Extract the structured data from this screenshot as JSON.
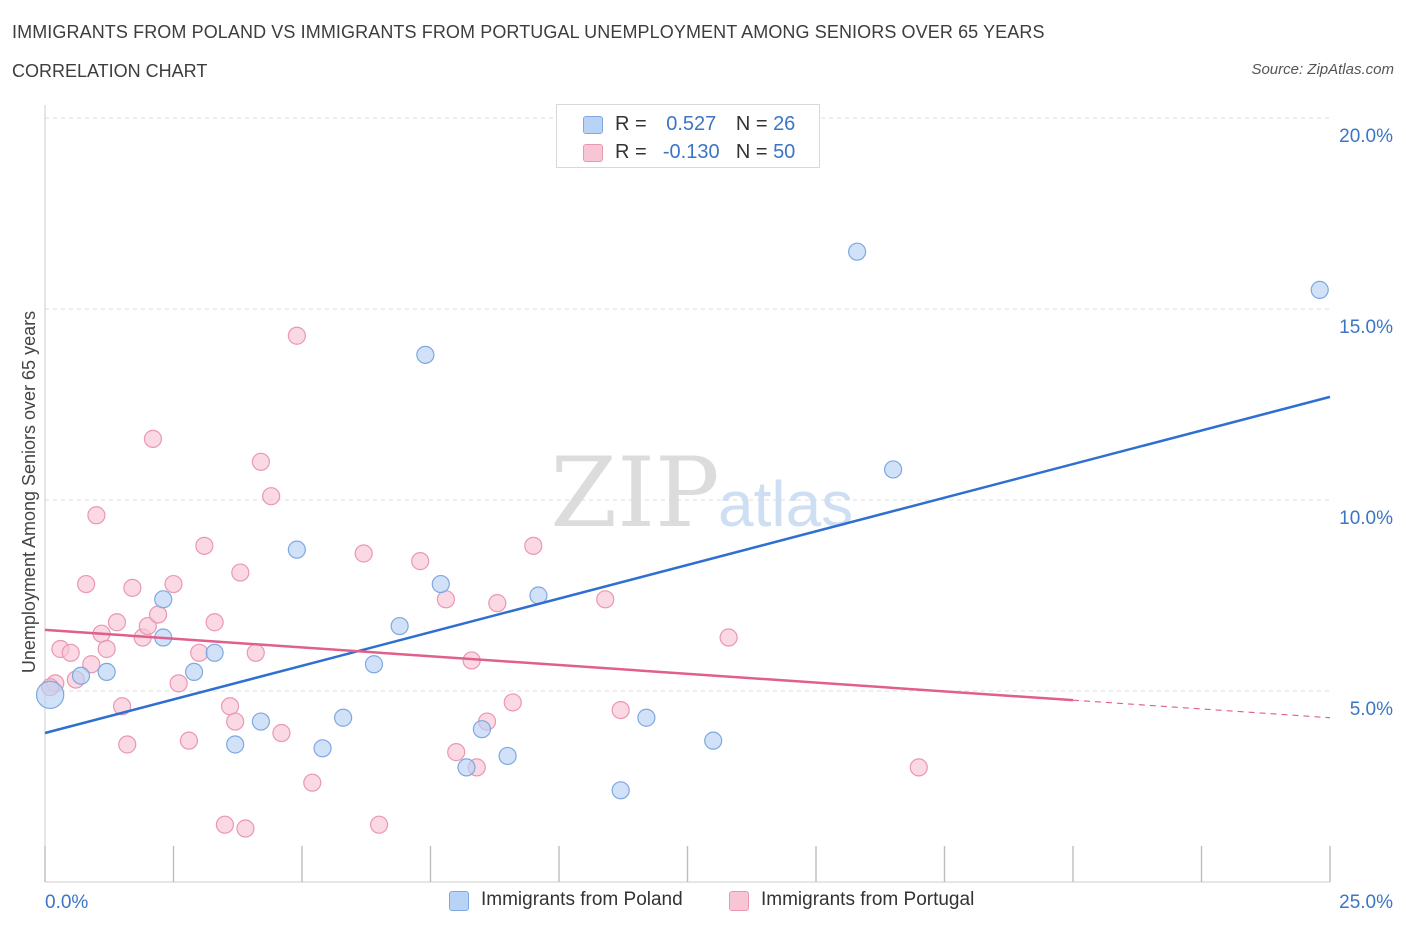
{
  "title": "IMMIGRANTS FROM POLAND VS IMMIGRANTS FROM PORTUGAL UNEMPLOYMENT AMONG SENIORS OVER 65 YEARS",
  "subtitle": "CORRELATION CHART",
  "source": "Source: ZipAtlas.com",
  "colors": {
    "poland_fill": "#b8d3f5",
    "poland_stroke": "#7ea8e0",
    "poland_line": "#2f6fd0",
    "portugal_fill": "#f8c5d5",
    "portugal_stroke": "#ea97b2",
    "portugal_line": "#e05f8c",
    "axis_label": "#3a76c4",
    "grid": "#dcdcdc"
  },
  "legend": {
    "poland": {
      "r_label": "R =",
      "r_value": "0.527",
      "n_label": "N =",
      "n_value": "26"
    },
    "portugal": {
      "r_label": "R =",
      "r_value": "-0.130",
      "n_label": "N =",
      "n_value": "50"
    }
  },
  "bottom_legend": {
    "poland": "Immigrants from Poland",
    "portugal": "Immigrants from Portugal"
  },
  "watermark": {
    "zip": "ZIP",
    "atlas": "atlas"
  },
  "chart_data": {
    "type": "scatter",
    "title": "IMMIGRANTS FROM POLAND VS IMMIGRANTS FROM PORTUGAL UNEMPLOYMENT AMONG SENIORS OVER 65 YEARS",
    "xlabel": "",
    "ylabel": "Unemployment Among Seniors over 65 years",
    "xlim": [
      0,
      25
    ],
    "ylim": [
      0,
      20
    ],
    "x_tick_labels": [
      "0.0%",
      "25.0%"
    ],
    "y_ticks": [
      5,
      10,
      15,
      20
    ],
    "y_tick_labels": [
      "5.0%",
      "10.0%",
      "15.0%",
      "20.0%"
    ],
    "grid": true,
    "series": [
      {
        "name": "Immigrants from Poland",
        "R": 0.527,
        "N": 26,
        "points": [
          [
            0.1,
            4.9,
            1.6
          ],
          [
            0.7,
            5.4,
            1
          ],
          [
            1.2,
            5.5,
            1
          ],
          [
            2.3,
            7.4,
            1
          ],
          [
            2.3,
            6.4,
            1
          ],
          [
            2.9,
            5.5,
            1
          ],
          [
            3.3,
            6.0,
            1
          ],
          [
            3.7,
            3.6,
            1
          ],
          [
            4.2,
            4.2,
            1
          ],
          [
            4.9,
            8.7,
            1
          ],
          [
            5.4,
            3.5,
            1
          ],
          [
            5.8,
            4.3,
            1
          ],
          [
            6.4,
            5.7,
            1
          ],
          [
            6.9,
            6.7,
            1
          ],
          [
            7.4,
            13.8,
            1
          ],
          [
            7.7,
            7.8,
            1
          ],
          [
            8.2,
            3.0,
            1
          ],
          [
            8.5,
            4.0,
            1
          ],
          [
            9.0,
            3.3,
            1
          ],
          [
            9.6,
            7.5,
            1
          ],
          [
            11.2,
            2.4,
            1
          ],
          [
            11.7,
            4.3,
            1
          ],
          [
            13.0,
            3.7,
            1
          ],
          [
            15.8,
            16.5,
            1
          ],
          [
            16.5,
            10.8,
            1
          ],
          [
            24.8,
            15.5,
            1
          ]
        ],
        "trend": {
          "x": [
            0,
            25
          ],
          "y": [
            3.9,
            12.7
          ],
          "dashed_from": null
        }
      },
      {
        "name": "Immigrants from Portugal",
        "R": -0.13,
        "N": 50,
        "points": [
          [
            0.2,
            5.2,
            1
          ],
          [
            0.3,
            6.1,
            1
          ],
          [
            0.5,
            6.0,
            1
          ],
          [
            0.6,
            5.3,
            1
          ],
          [
            0.8,
            7.8,
            1
          ],
          [
            0.9,
            5.7,
            1
          ],
          [
            1.0,
            9.6,
            1
          ],
          [
            1.1,
            6.5,
            1
          ],
          [
            1.2,
            6.1,
            1
          ],
          [
            1.4,
            6.8,
            1
          ],
          [
            1.5,
            4.6,
            1
          ],
          [
            1.6,
            3.6,
            1
          ],
          [
            1.7,
            7.7,
            1
          ],
          [
            1.9,
            6.4,
            1
          ],
          [
            2.0,
            6.7,
            1
          ],
          [
            2.1,
            11.6,
            1
          ],
          [
            2.2,
            7.0,
            1
          ],
          [
            2.5,
            7.8,
            1
          ],
          [
            2.6,
            5.2,
            1
          ],
          [
            2.8,
            3.7,
            1
          ],
          [
            3.0,
            6.0,
            1
          ],
          [
            3.1,
            8.8,
            1
          ],
          [
            3.3,
            6.8,
            1
          ],
          [
            3.5,
            1.5,
            1
          ],
          [
            3.6,
            4.6,
            1
          ],
          [
            3.7,
            4.2,
            1
          ],
          [
            3.8,
            8.1,
            1
          ],
          [
            3.9,
            1.4,
            1
          ],
          [
            4.1,
            6.0,
            1
          ],
          [
            4.2,
            11.0,
            1
          ],
          [
            4.4,
            10.1,
            1
          ],
          [
            4.6,
            3.9,
            1
          ],
          [
            4.9,
            14.3,
            1
          ],
          [
            5.2,
            2.6,
            1
          ],
          [
            6.2,
            8.6,
            1
          ],
          [
            6.5,
            1.5,
            1
          ],
          [
            7.3,
            8.4,
            1
          ],
          [
            7.8,
            7.4,
            1
          ],
          [
            8.0,
            3.4,
            1
          ],
          [
            8.3,
            5.8,
            1
          ],
          [
            8.4,
            3.0,
            1
          ],
          [
            8.6,
            4.2,
            1
          ],
          [
            8.8,
            7.3,
            1
          ],
          [
            9.1,
            4.7,
            1
          ],
          [
            9.5,
            8.8,
            1
          ],
          [
            10.9,
            7.4,
            1
          ],
          [
            11.2,
            4.5,
            1
          ],
          [
            13.3,
            6.4,
            1
          ],
          [
            17.0,
            3.0,
            1
          ],
          [
            0.1,
            5.1,
            1
          ]
        ],
        "trend": {
          "x": [
            0,
            25
          ],
          "y": [
            6.6,
            4.3
          ],
          "dashed_from": 20
        }
      }
    ]
  }
}
